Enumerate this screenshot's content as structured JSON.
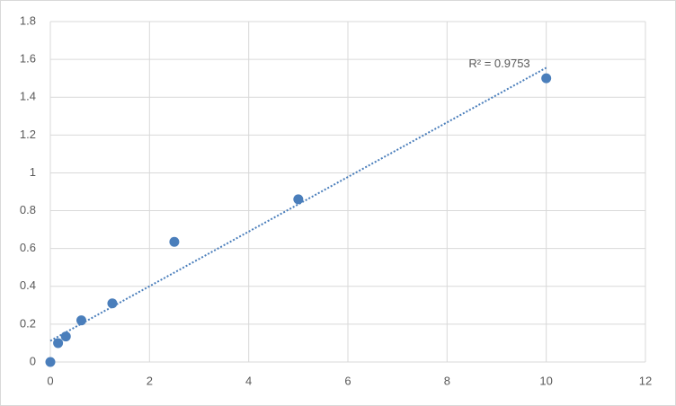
{
  "chart_data": {
    "type": "scatter",
    "x": [
      0,
      0.156,
      0.3125,
      0.625,
      1.25,
      2.5,
      5,
      10
    ],
    "series": [
      {
        "color": "#4a7ebb",
        "values": [
          0,
          0.1,
          0.135,
          0.22,
          0.31,
          0.635,
          0.86,
          1.5
        ]
      }
    ],
    "xlim": [
      0,
      12
    ],
    "xticks": [
      0,
      2,
      4,
      6,
      8,
      10,
      12
    ],
    "ylim": [
      0,
      1.8
    ],
    "yticks": [
      0,
      0.2,
      0.4,
      0.6,
      0.8,
      1,
      1.2,
      1.4,
      1.6,
      1.8
    ],
    "grid": true,
    "trendline": "linear",
    "annotation": "R² = 0.9753"
  }
}
